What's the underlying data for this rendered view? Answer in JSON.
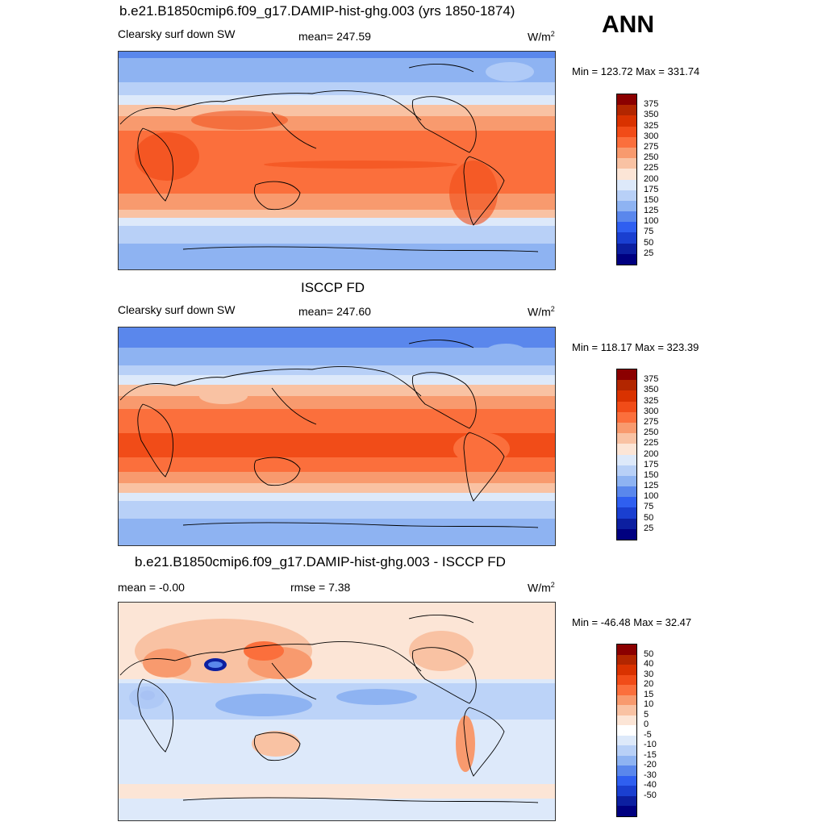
{
  "season": "ANN",
  "panels": [
    {
      "title": "b.e21.B1850cmip6.f09_g17.DAMIP-hist-ghg.003 (yrs 1850-1874)",
      "variable": "Clearsky surf down SW",
      "stat": "mean= 247.59",
      "units": "W/m",
      "units_exp": "2",
      "minmax": "Min = 123.72 Max = 331.74",
      "colorbar_ticks": [
        "375",
        "350",
        "325",
        "300",
        "275",
        "250",
        "225",
        "200",
        "175",
        "150",
        "125",
        "100",
        "75",
        "50",
        "25"
      ]
    },
    {
      "title": "ISCCP FD",
      "variable": "Clearsky surf down SW",
      "stat": "mean= 247.60",
      "units": "W/m",
      "units_exp": "2",
      "minmax": "Min = 118.17 Max = 323.39",
      "colorbar_ticks": [
        "375",
        "350",
        "325",
        "300",
        "275",
        "250",
        "225",
        "200",
        "175",
        "150",
        "125",
        "100",
        "75",
        "50",
        "25"
      ]
    },
    {
      "title": "b.e21.B1850cmip6.f09_g17.DAMIP-hist-ghg.003 - ISCCP FD",
      "stat_mean": "mean =  -0.00",
      "stat_rmse": "rmse =   7.38",
      "units": "W/m",
      "units_exp": "2",
      "minmax": "Min = -46.48 Max =  32.47",
      "colorbar_ticks": [
        "50",
        "40",
        "30",
        "20",
        "15",
        "10",
        "5",
        "0",
        "-5",
        "-10",
        "-15",
        "-20",
        "-30",
        "-40",
        "-50"
      ]
    }
  ],
  "colors": {
    "field_scale": [
      "#8b0000",
      "#b22600",
      "#d93200",
      "#f14c18",
      "#fb6f3c",
      "#f89a6e",
      "#f9c2a3",
      "#fce5d6",
      "#dde9fa",
      "#b8d0f7",
      "#8eb3f2",
      "#5a87ec",
      "#2f5ff0",
      "#1a3fd0",
      "#0c1fa0",
      "#000080"
    ],
    "diff_scale": [
      "#8b0000",
      "#b22600",
      "#d93200",
      "#f14c18",
      "#fb6f3c",
      "#f89a6e",
      "#f9c2a3",
      "#fce5d6",
      "#ffffff",
      "#dde9fa",
      "#b8d0f7",
      "#8eb3f2",
      "#5a87ec",
      "#2f5ff0",
      "#1a3fd0",
      "#0c1fa0",
      "#000080"
    ],
    "coast": "#000000"
  }
}
